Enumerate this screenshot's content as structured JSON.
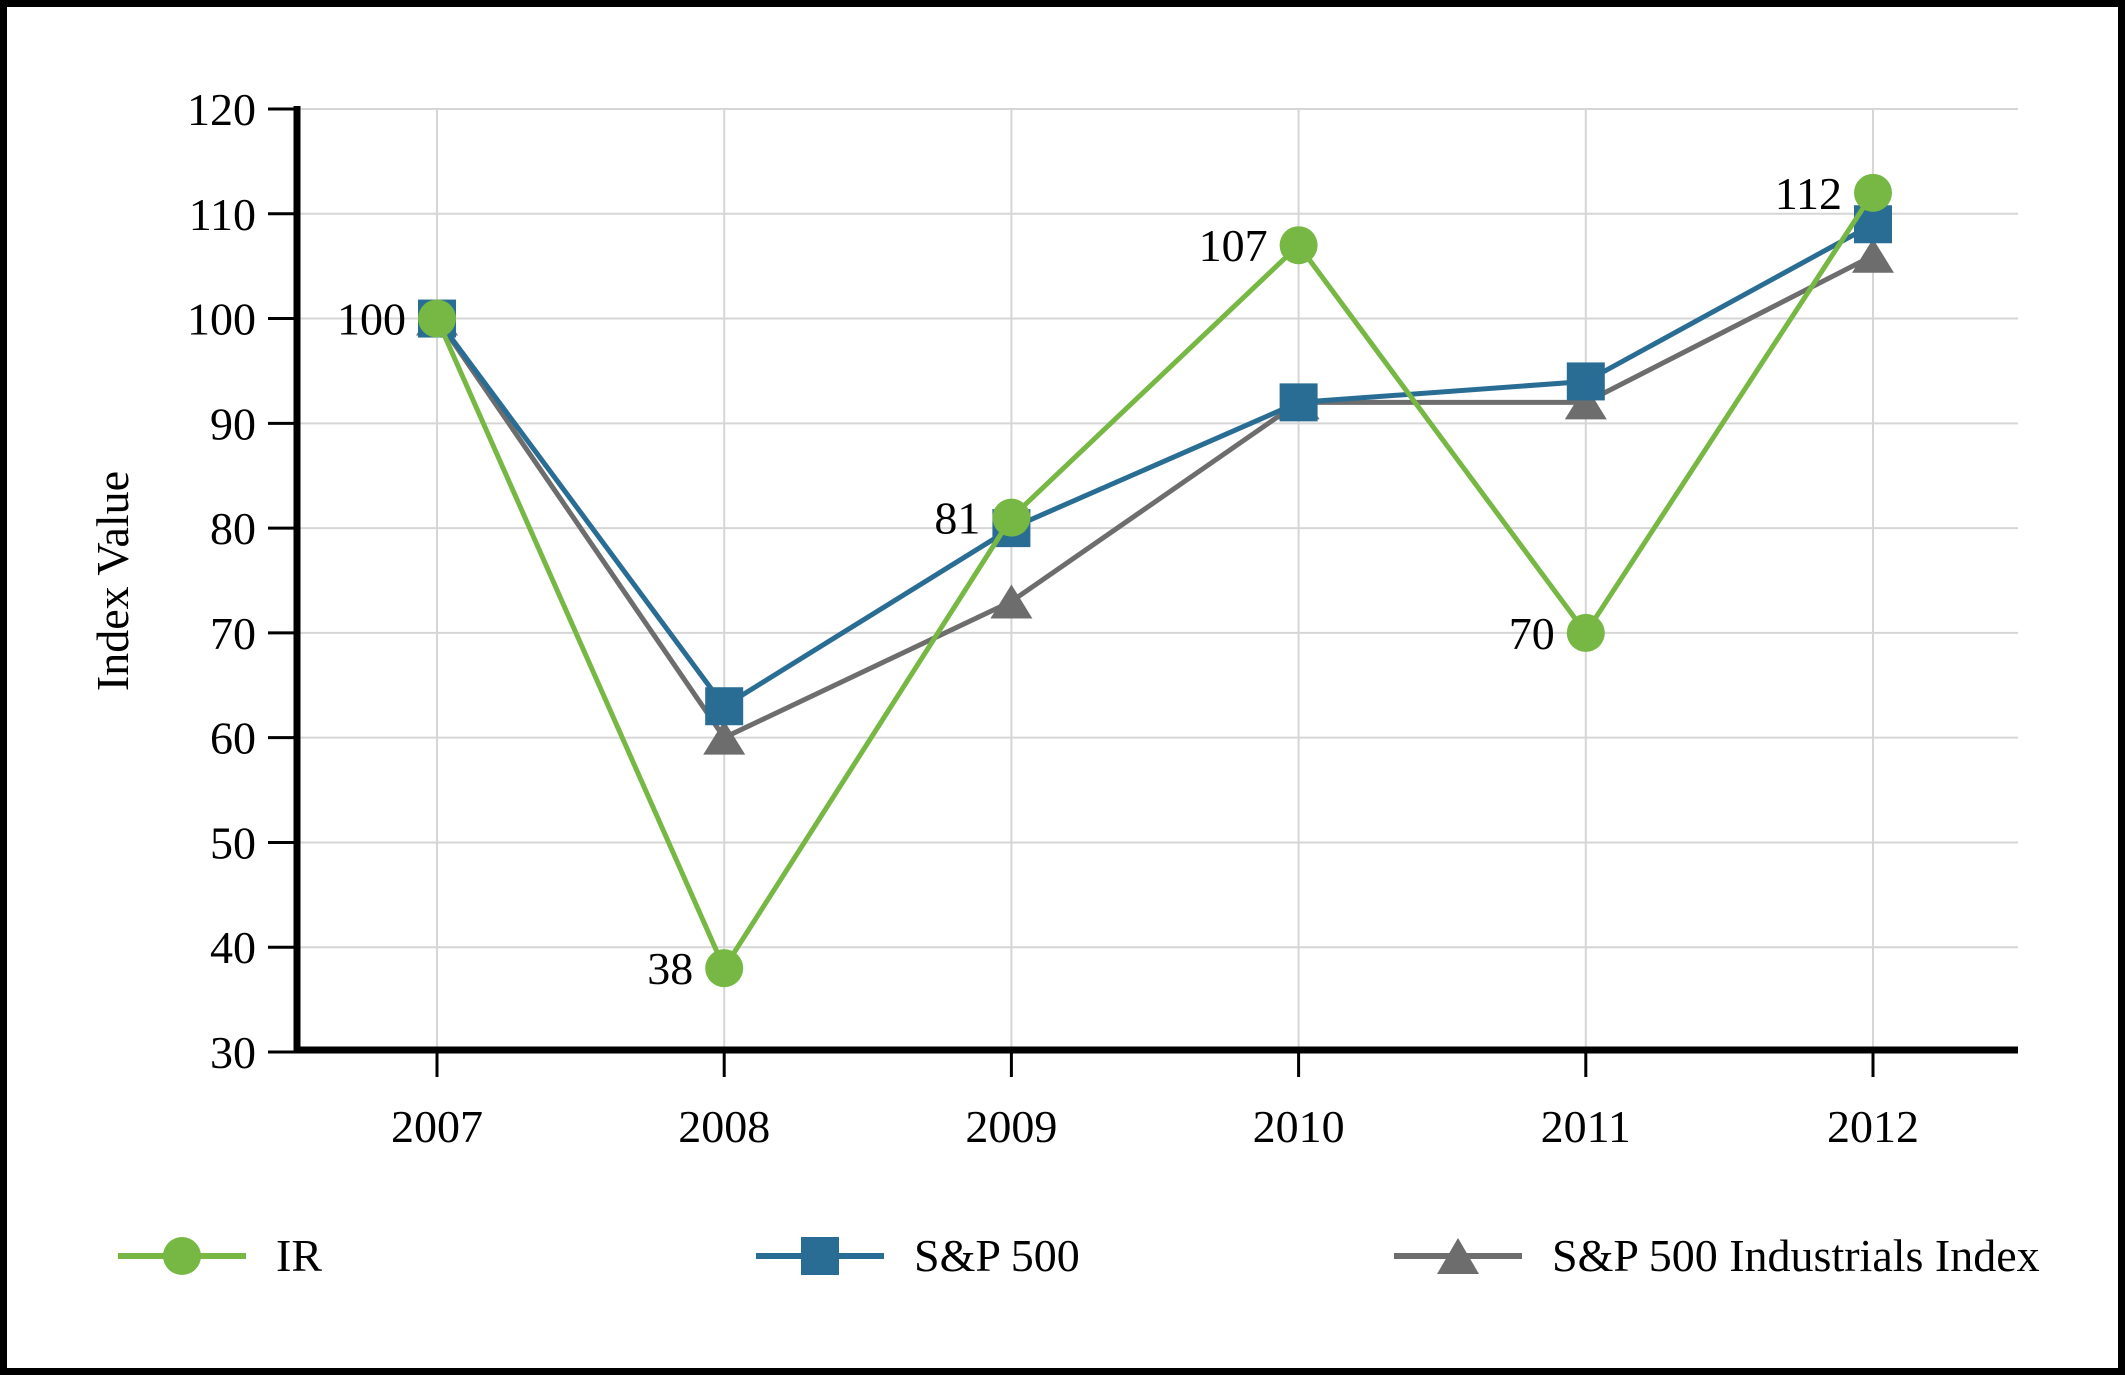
{
  "chart_data": {
    "type": "line",
    "title": "",
    "xlabel": "",
    "ylabel": "Index Value",
    "categories": [
      "2007",
      "2008",
      "2009",
      "2010",
      "2011",
      "2012"
    ],
    "ylim": [
      30,
      120
    ],
    "y_ticks": [
      30,
      40,
      50,
      60,
      70,
      80,
      90,
      100,
      110,
      120
    ],
    "grid": true,
    "legend_position": "bottom",
    "series": [
      {
        "name": "IR",
        "marker": "circle",
        "color": "#76B843",
        "values": [
          100,
          38,
          81,
          107,
          70,
          112
        ],
        "point_labels": [
          "100",
          "38",
          "81",
          "107",
          "70",
          "112"
        ]
      },
      {
        "name": "S&P 500",
        "marker": "square",
        "color": "#2A6D94",
        "values": [
          100,
          63,
          80,
          92,
          94,
          109
        ],
        "point_labels": []
      },
      {
        "name": "S&P 500 Industrials Index",
        "marker": "triangle",
        "color": "#6D6D6D",
        "values": [
          100,
          60,
          73,
          92,
          92,
          106
        ],
        "point_labels": []
      }
    ],
    "colors": {
      "axis": "#000000",
      "gridline": "#D6D6D6",
      "text": "#000000",
      "background": "#FFFFFF"
    }
  }
}
